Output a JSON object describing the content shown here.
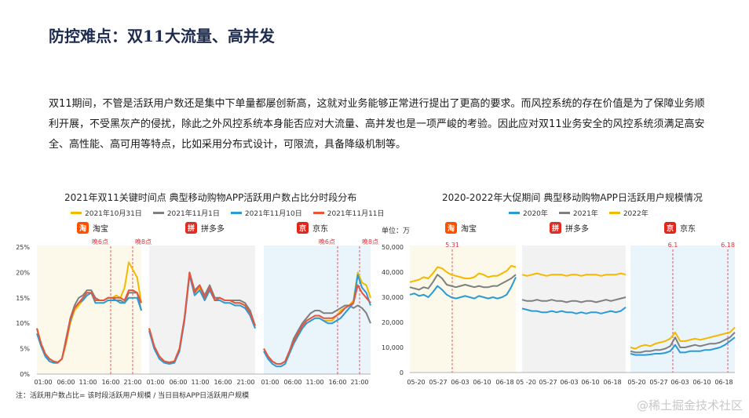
{
  "title": "防控难点：双11大流量、高并发",
  "paragraph": "双11期间，不管是活跃用户数还是集中下单量都屡创新高，这就对业务能够正常进行提出了更高的要求。而风控系统的存在价值是为了保障业务顺利开展，不受黑灰产的侵扰，除此之外风控系统本身能否应对大流量、高并发也是一项严峻的考验。因此应对双11业务安全的风控系统须满足高安全、高性能、高可用等特点，比如采用分布式设计，可限流，具备降级机制等。",
  "footnote": "注：活跃用户数占比= 该时段活跃用户规模 / 当日目标APP日活跃用户规模",
  "watermark": "@稀土掘金技术社区",
  "brands": [
    {
      "name": "淘宝",
      "icon": "taobao-logo-icon",
      "color": "#ff5000"
    },
    {
      "name": "拼多多",
      "icon": "pinduoduo-logo-icon",
      "color": "#e02e24"
    },
    {
      "name": "京东",
      "icon": "jd-logo-icon",
      "color": "#e1251b"
    }
  ],
  "chart_data": [
    {
      "type": "line",
      "title": "2021年双11关键时间点 典型移动购物APP活跃用户数占比分时段分布",
      "ylim": [
        0,
        25
      ],
      "yticks": [
        "0%",
        "5%",
        "10%",
        "15%",
        "20%",
        "25%"
      ],
      "xticks": [
        "01:00",
        "06:00",
        "11:00",
        "16:00",
        "21:00"
      ],
      "annotations": [
        "晚6点",
        "晚8点"
      ],
      "panels": [
        "淘宝",
        "拼多多",
        "京东"
      ],
      "series": [
        {
          "name": "2021年10月31日",
          "color": "#f5b800",
          "values": [
            [
              9,
              6,
              4,
              3,
              2.5,
              2.3,
              3,
              6,
              10,
              12.5,
              13.5,
              14.5,
              15.5,
              16,
              15,
              14.5,
              14.5,
              15,
              15,
              15.5,
              15,
              17,
              22,
              20.5,
              19,
              14
            ],
            [
              9,
              5.5,
              3.5,
              2.5,
              2.3,
              2.5,
              5,
              11,
              19.5,
              16,
              17,
              15,
              17,
              14.5,
              15,
              14.5,
              14.5,
              14,
              14,
              13.5,
              12,
              9
            ],
            [
              5,
              3.5,
              2.5,
              2,
              2,
              2.5,
              4,
              6,
              7.5,
              9,
              10,
              10.5,
              11,
              11,
              10.5,
              10.5,
              10.5,
              11.5,
              12.5,
              13,
              13.5,
              14.5,
              20,
              18,
              17.5,
              15
            ]
          ]
        },
        {
          "name": "2021年11月1日",
          "color": "#7f7f7f",
          "values": [
            [
              9,
              6,
              4,
              3,
              2.5,
              2.3,
              3,
              7,
              11,
              13.5,
              15,
              15.5,
              16.5,
              16.5,
              15,
              14.5,
              14.5,
              15,
              15,
              14.5,
              14.5,
              14,
              16,
              16,
              16,
              12.5
            ],
            [
              9,
              5.5,
              3.5,
              2.5,
              2.3,
              2.5,
              5,
              11,
              20,
              16.5,
              17.5,
              15.5,
              17.5,
              15,
              15,
              14.5,
              14.5,
              14.5,
              14.5,
              14,
              12.5,
              9.5
            ],
            [
              5,
              3.5,
              2.5,
              2,
              2,
              2.5,
              4.5,
              7,
              8.5,
              10,
              11,
              12,
              12.5,
              12.5,
              12,
              12,
              12,
              12.5,
              13,
              13.5,
              13.5,
              13,
              13.5,
              13,
              12,
              10
            ]
          ]
        },
        {
          "name": "2021年11月10日",
          "color": "#2a9bd6",
          "values": [
            [
              8,
              5.5,
              3.5,
              2.5,
              2.2,
              2.2,
              3,
              6.5,
              10.5,
              13,
              14,
              14.5,
              15.5,
              16,
              14,
              14,
              14,
              14.5,
              14.5,
              14.5,
              14,
              14,
              15,
              15,
              15,
              12.5
            ],
            [
              8.5,
              5,
              3,
              2.2,
              2,
              2.2,
              4.5,
              10.5,
              19.5,
              15.5,
              16.5,
              14.5,
              16.5,
              14.5,
              14.5,
              14,
              14,
              13.5,
              13.5,
              13,
              11.5,
              9
            ],
            [
              4.5,
              3,
              2,
              1.5,
              1.5,
              2,
              4,
              6,
              7.5,
              9,
              10,
              10.5,
              11,
              11,
              10.5,
              10,
              10,
              10.5,
              11,
              12,
              13,
              14,
              19.5,
              17,
              16,
              13.5
            ]
          ]
        },
        {
          "name": "2021年11月11日",
          "color": "#e8553c",
          "values": [
            [
              9,
              6,
              4,
              3,
              2.5,
              2.3,
              3,
              6.5,
              11,
              13,
              14,
              15,
              16,
              16,
              14.5,
              14.5,
              14.5,
              15,
              15,
              15,
              15,
              14.5,
              16.5,
              16.5,
              16,
              14
            ],
            [
              9,
              5.5,
              3.5,
              2.5,
              2.3,
              2.5,
              5,
              11,
              20,
              16,
              17.5,
              15,
              17,
              14.5,
              15,
              14.5,
              14.5,
              14,
              14,
              13.5,
              12,
              9.5
            ],
            [
              5,
              3.5,
              2.5,
              2,
              2,
              2.5,
              4.5,
              6.5,
              8,
              9.5,
              10.5,
              11,
              11.5,
              11.5,
              11,
              11,
              11,
              11.5,
              12,
              13,
              13.5,
              14,
              17.5,
              16,
              15,
              14
            ]
          ]
        }
      ]
    },
    {
      "type": "line",
      "title": "2020-2022年大促期间 典型移动购物APP日活跃用户规模情况",
      "ylabel": "单位：万",
      "ylim": [
        0,
        50000
      ],
      "yticks": [
        "0",
        "10,000",
        "20,000",
        "30,000",
        "40,000",
        "50,000"
      ],
      "xticks": [
        [
          "05-20",
          "05-27",
          "06-03",
          "06-10",
          "06-18"
        ],
        [
          "05 -20",
          "05-27",
          "06-03",
          "06-10",
          "06-18"
        ],
        [
          "05-20",
          "05-27",
          "06-03",
          "06-10",
          "06-18"
        ]
      ],
      "annotations": [
        "5.31",
        "6.1",
        "6.18"
      ],
      "panels": [
        "淘宝",
        "拼多多",
        "京东"
      ],
      "series": [
        {
          "name": "2020年",
          "color": "#2a9bd6",
          "values": [
            [
              31000,
              31500,
              30500,
              31000,
              30000,
              32000,
              34500,
              33000,
              31000,
              30000,
              29500,
              30000,
              30500,
              30000,
              29500,
              30500,
              30000,
              29500,
              30000,
              29500,
              30000,
              31000,
              34000,
              38000
            ],
            [
              25500,
              25000,
              24500,
              24500,
              24000,
              24000,
              24500,
              24000,
              24500,
              24000,
              24000,
              23500,
              24000,
              23500,
              24000,
              24000,
              23500,
              24000,
              24500,
              24000,
              24500,
              26000
            ],
            [
              7500,
              7000,
              7000,
              7000,
              7200,
              7500,
              7500,
              7800,
              8500,
              11000,
              8000,
              8000,
              8500,
              8500,
              8500,
              9000,
              9000,
              9500,
              10000,
              11000,
              12500,
              14000
            ]
          ]
        },
        {
          "name": "2021年",
          "color": "#7f7f7f",
          "values": [
            [
              34000,
              33500,
              33000,
              34000,
              33500,
              36000,
              39000,
              37500,
              35000,
              34500,
              34000,
              34500,
              35000,
              34500,
              34000,
              34500,
              34000,
              34000,
              34500,
              34500,
              35500,
              36500,
              37500,
              39000
            ],
            [
              29000,
              28500,
              28500,
              29000,
              28500,
              28500,
              29000,
              28500,
              28500,
              28000,
              28500,
              28500,
              28000,
              28500,
              28500,
              28000,
              28500,
              29000,
              28500,
              29000,
              29500,
              30000
            ],
            [
              8500,
              8000,
              8000,
              8500,
              8500,
              9000,
              9000,
              9500,
              10500,
              14000,
              10000,
              10000,
              10500,
              11000,
              10500,
              11000,
              11500,
              11500,
              12000,
              13000,
              14000,
              16000
            ]
          ]
        },
        {
          "name": "2022年",
          "color": "#f5b800",
          "values": [
            [
              36000,
              36500,
              37000,
              38000,
              37500,
              39500,
              42000,
              41500,
              40000,
              39000,
              38500,
              38000,
              37500,
              37500,
              38000,
              39500,
              39000,
              38000,
              38500,
              38500,
              39500,
              40500,
              42500,
              42000
            ],
            [
              39000,
              38500,
              39000,
              39500,
              39000,
              38500,
              39000,
              39000,
              39000,
              38500,
              39000,
              39000,
              38500,
              39000,
              39000,
              39000,
              38500,
              39000,
              39000,
              39000,
              39500,
              39000
            ],
            [
              10000,
              9500,
              10500,
              11000,
              10500,
              11500,
              12000,
              12500,
              13500,
              16000,
              12500,
              12500,
              13000,
              13500,
              13000,
              13500,
              14000,
              14500,
              15000,
              15500,
              16000,
              18000
            ]
          ]
        }
      ]
    }
  ]
}
